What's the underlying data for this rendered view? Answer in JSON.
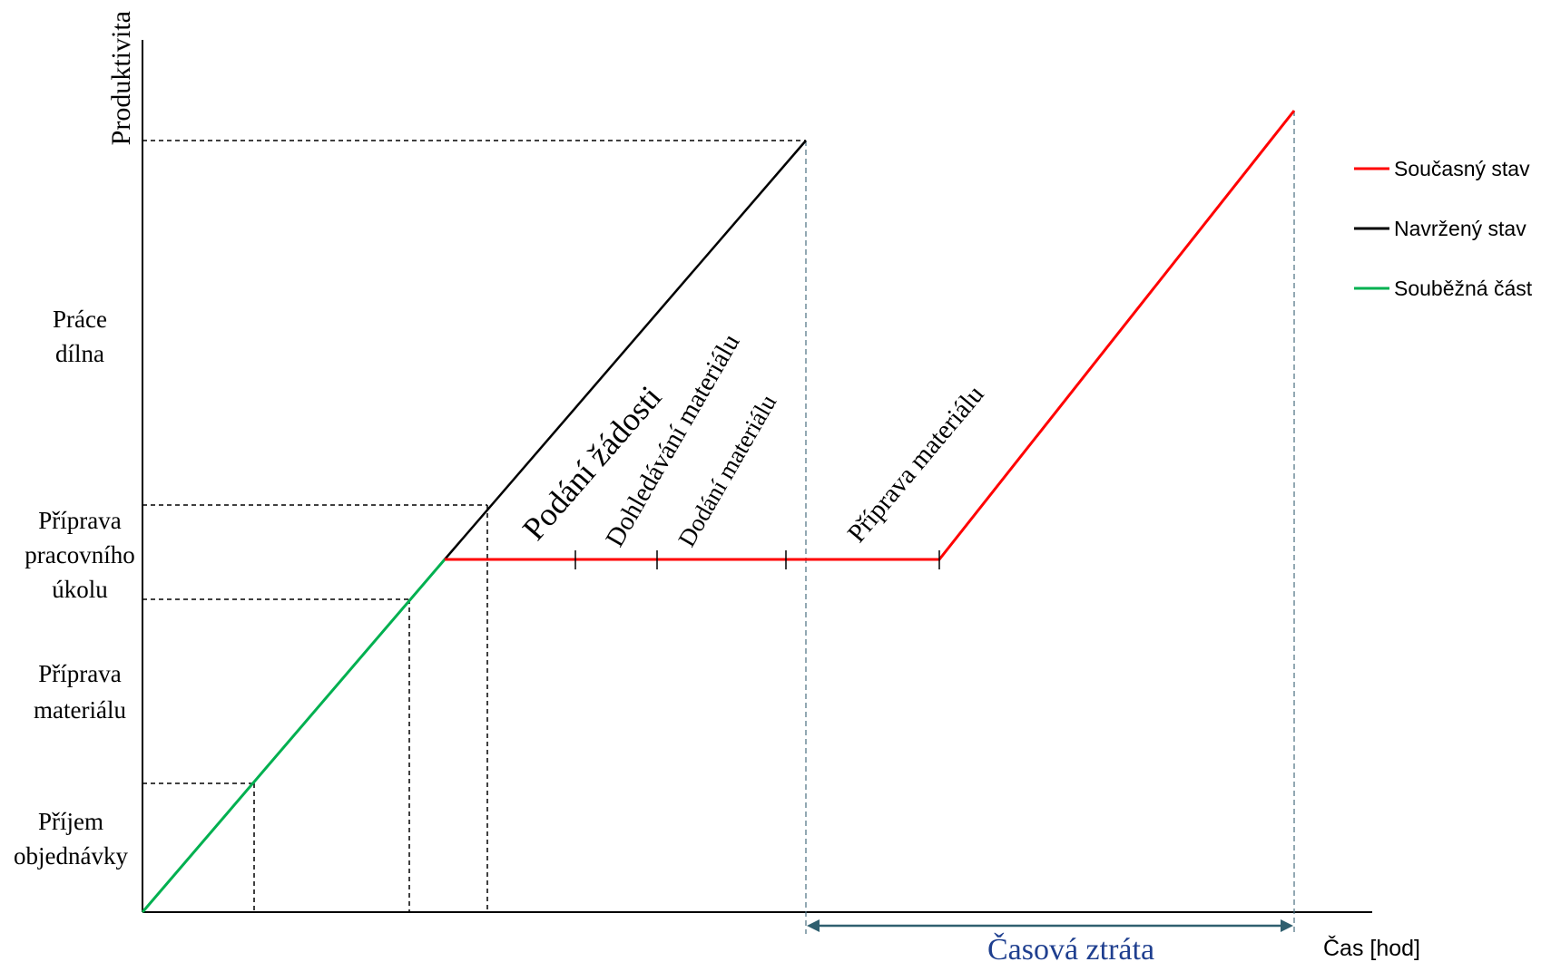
{
  "diagram": {
    "y_axis_title": "Produktivita",
    "x_axis_title": "Čas [hod]",
    "y_levels": [
      {
        "lines": [
          "Příjem",
          "objednávky"
        ]
      },
      {
        "lines": [
          "Příprava",
          "materiálu"
        ]
      },
      {
        "lines": [
          "Příprava",
          "pracovního",
          "úkolu"
        ]
      },
      {
        "lines": [
          "Práce",
          "dílna"
        ]
      }
    ],
    "segment_labels": {
      "podani_zadosti": "Podání žádosti",
      "dohledavani": "Dohledávání materiálu",
      "dodani": "Dodání materiálu",
      "priprava": "Příprava materiálu"
    },
    "time_loss_label": "Časová ztráta",
    "legend": [
      {
        "label": "Současný stav",
        "color": "#ff0000"
      },
      {
        "label": "Navržený stav",
        "color": "#000000"
      },
      {
        "label": "Souběžná část",
        "color": "#00b050"
      }
    ],
    "colors": {
      "current": "#ff0000",
      "proposed": "#000000",
      "parallel": "#00b050",
      "time_loss_arrow": "#2f5f6f",
      "time_loss_text": "#1f3f8f"
    }
  }
}
